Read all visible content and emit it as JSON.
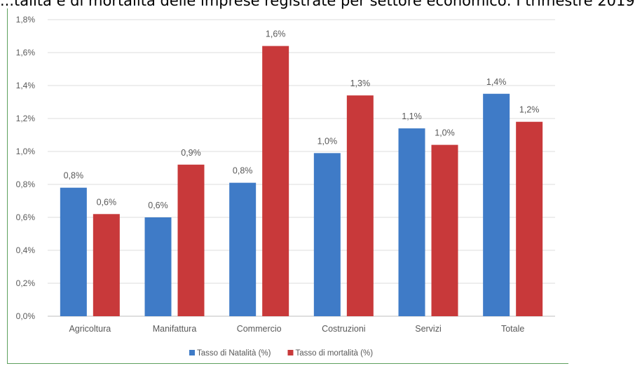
{
  "caption": "...talità e di mortalità delle imprese registrate per settore economico: I trimestre 2019",
  "chart_data": {
    "type": "bar",
    "title": "",
    "categories": [
      "Agricoltura",
      "Manifattura",
      "Commercio",
      "Costruzioni",
      "Servizi",
      "Totale"
    ],
    "series": [
      {
        "name": "Tasso di Natalità (%)",
        "color": "#3f7bc7",
        "values": [
          0.78,
          0.6,
          0.81,
          0.99,
          1.14,
          1.35
        ],
        "labels": [
          "0,8%",
          "0,6%",
          "0,8%",
          "1,0%",
          "1,1%",
          "1,4%"
        ]
      },
      {
        "name": "Tasso di mortalità (%)",
        "color": "#c8393a",
        "values": [
          0.62,
          0.92,
          1.64,
          1.34,
          1.04,
          1.18
        ],
        "labels": [
          "0,6%",
          "0,9%",
          "1,6%",
          "1,3%",
          "1,0%",
          "1,2%"
        ]
      }
    ],
    "ylim": [
      0,
      1.8
    ],
    "yticks": [
      0,
      0.2,
      0.4,
      0.6,
      0.8,
      1.0,
      1.2,
      1.4,
      1.6,
      1.8
    ],
    "ytick_labels": [
      "0,0%",
      "0,2%",
      "0,4%",
      "0,6%",
      "0,8%",
      "1,0%",
      "1,2%",
      "1,4%",
      "1,6%",
      "1,8%"
    ],
    "grid": true,
    "legend": "bottom"
  }
}
